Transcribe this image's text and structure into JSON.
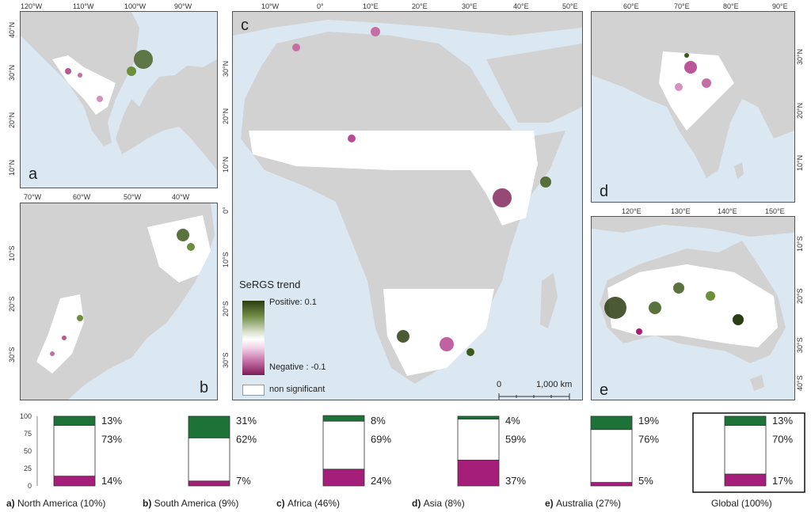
{
  "colors": {
    "ocean": "#dbe8f2",
    "land": "#d2d2d2",
    "positive": "#1d7238",
    "middle": "#ffffff",
    "negative": "#a51e7a"
  },
  "panels": {
    "a": {
      "label": "a",
      "xticks": [
        "120°W",
        "110°W",
        "100°W",
        "90°W"
      ],
      "yticks": [
        "40°N",
        "30°N",
        "20°N",
        "10°N"
      ]
    },
    "b": {
      "label": "b",
      "xticks": [
        "70°W",
        "60°W",
        "50°W",
        "40°W"
      ],
      "yticks": [
        "10°S",
        "20°S",
        "30°S"
      ]
    },
    "c": {
      "label": "c",
      "xticks": [
        "10°W",
        "0°",
        "10°E",
        "20°E",
        "30°E",
        "40°E",
        "50°E"
      ],
      "yticks": [
        "30°N",
        "20°N",
        "10°N",
        "0°",
        "10°S",
        "20°S",
        "30°S"
      ]
    },
    "d": {
      "label": "d",
      "xticks": [
        "60°E",
        "70°E",
        "80°E",
        "90°E"
      ],
      "yticks": [
        "30°N",
        "20°N",
        "10°N"
      ]
    },
    "e": {
      "label": "e",
      "xticks": [
        "120°E",
        "130°E",
        "140°E",
        "150°E"
      ],
      "yticks": [
        "10°S",
        "20°S",
        "30°S",
        "40°S"
      ]
    }
  },
  "legend": {
    "title": "SeRGS trend",
    "positive": "Positive: 0.1",
    "negative": "Negative : -0.1",
    "non_significant": "non significant"
  },
  "scalebar": {
    "zero": "0",
    "distance": "1,000 km"
  },
  "chart_data": {
    "type": "bar",
    "stacked": true,
    "ylim": [
      0,
      100
    ],
    "yticks": [
      0,
      25,
      50,
      75,
      100
    ],
    "categories": [
      "a) North America (10%)",
      "b) South America (9%)",
      "c) Africa (46%)",
      "d) Asia (8%)",
      "e) Australia (27%)",
      "Global (100%)"
    ],
    "series": [
      {
        "name": "negative",
        "values": [
          14,
          7,
          24,
          37,
          5,
          17
        ]
      },
      {
        "name": "non significant",
        "values": [
          73,
          62,
          69,
          59,
          76,
          70
        ]
      },
      {
        "name": "positive",
        "values": [
          13,
          31,
          8,
          4,
          19,
          13
        ]
      }
    ],
    "labels": {
      "negative": [
        "14%",
        "7%",
        "24%",
        "37%",
        "5%",
        "17%"
      ],
      "non_significant": [
        "73%",
        "62%",
        "69%",
        "59%",
        "76%",
        "70%"
      ],
      "positive": [
        "13%",
        "31%",
        "8%",
        "4%",
        "19%",
        "13%"
      ]
    },
    "captions": [
      {
        "letter": "a)",
        "name": "North America (10%)"
      },
      {
        "letter": "b)",
        "name": "South America (9%)"
      },
      {
        "letter": "c)",
        "name": "Africa (46%)"
      },
      {
        "letter": "d)",
        "name": "Asia (8%)"
      },
      {
        "letter": "e)",
        "name": "Australia (27%)"
      },
      {
        "letter": "",
        "name": "Global (100%)"
      }
    ]
  }
}
